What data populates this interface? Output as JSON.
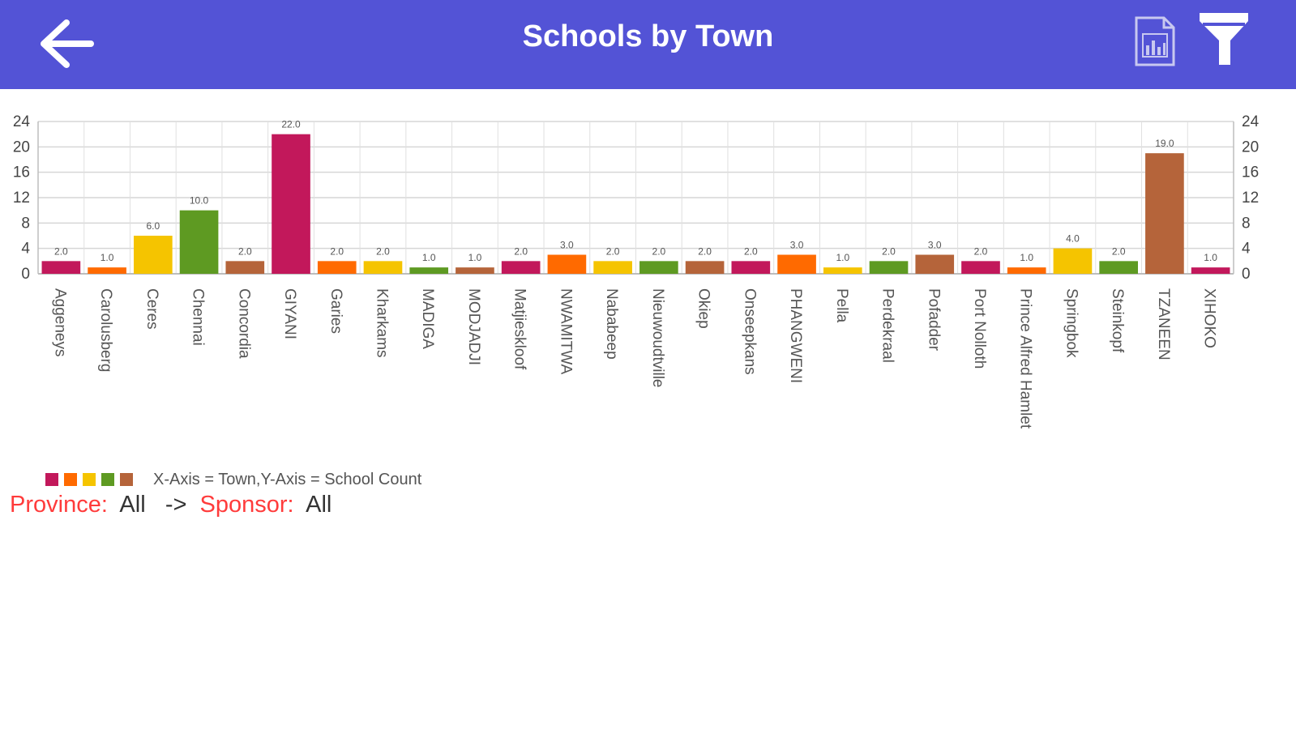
{
  "header": {
    "title": "Schools by Town",
    "back_icon": "arrow-left-icon",
    "report_icon": "report-document-icon",
    "filter_icon": "funnel-filter-icon",
    "background_color": "#5353d6"
  },
  "chart_data": {
    "type": "bar",
    "categories": [
      "Aggeneys",
      "Carolusberg",
      "Ceres",
      "Chennai",
      "Concordia",
      "GIYANI",
      "Garies",
      "Kharkams",
      "MADIGA",
      "MODJADJI",
      "Matjieskloof",
      "NWAMITWA",
      "Nababeep",
      "Nieuwoudtville",
      "Okiep",
      "Onseepkans",
      "PHANGWENI",
      "Pella",
      "Perdekraal",
      "Pofadder",
      "Port Nolloth",
      "Prince Alfred Hamlet",
      "Springbok",
      "Steinkopf",
      "TZANEEN",
      "XIHOKO"
    ],
    "values": [
      2,
      1,
      6,
      10,
      2,
      22,
      2,
      2,
      1,
      1,
      2,
      3,
      2,
      2,
      2,
      2,
      3,
      1,
      2,
      3,
      2,
      1,
      4,
      2,
      19,
      1
    ],
    "value_labels": [
      "2.0",
      "1.0",
      "6.0",
      "10.0",
      "2.0",
      "22.0",
      "2.0",
      "2.0",
      "1.0",
      "1.0",
      "2.0",
      "3.0",
      "2.0",
      "2.0",
      "2.0",
      "2.0",
      "3.0",
      "1.0",
      "2.0",
      "3.0",
      "2.0",
      "1.0",
      "4.0",
      "2.0",
      "19.0",
      "1.0"
    ],
    "colors": [
      "#c2185b",
      "#ff6a00",
      "#f5c400",
      "#5e9a22",
      "#b5643a"
    ],
    "y_ticks": [
      "0",
      "4",
      "8",
      "12",
      "16",
      "20",
      "24"
    ],
    "ylim": [
      0,
      24
    ],
    "grid": true,
    "dual_y_axis": true
  },
  "legend": {
    "colors": [
      "#c2185b",
      "#ff6a00",
      "#f5c400",
      "#5e9a22",
      "#b5643a"
    ],
    "text": "X-Axis = Town,Y-Axis = School Count"
  },
  "filters": {
    "province_label": "Province:",
    "province_value": "All",
    "arrow": "->",
    "sponsor_label": "Sponsor:",
    "sponsor_value": "All"
  }
}
